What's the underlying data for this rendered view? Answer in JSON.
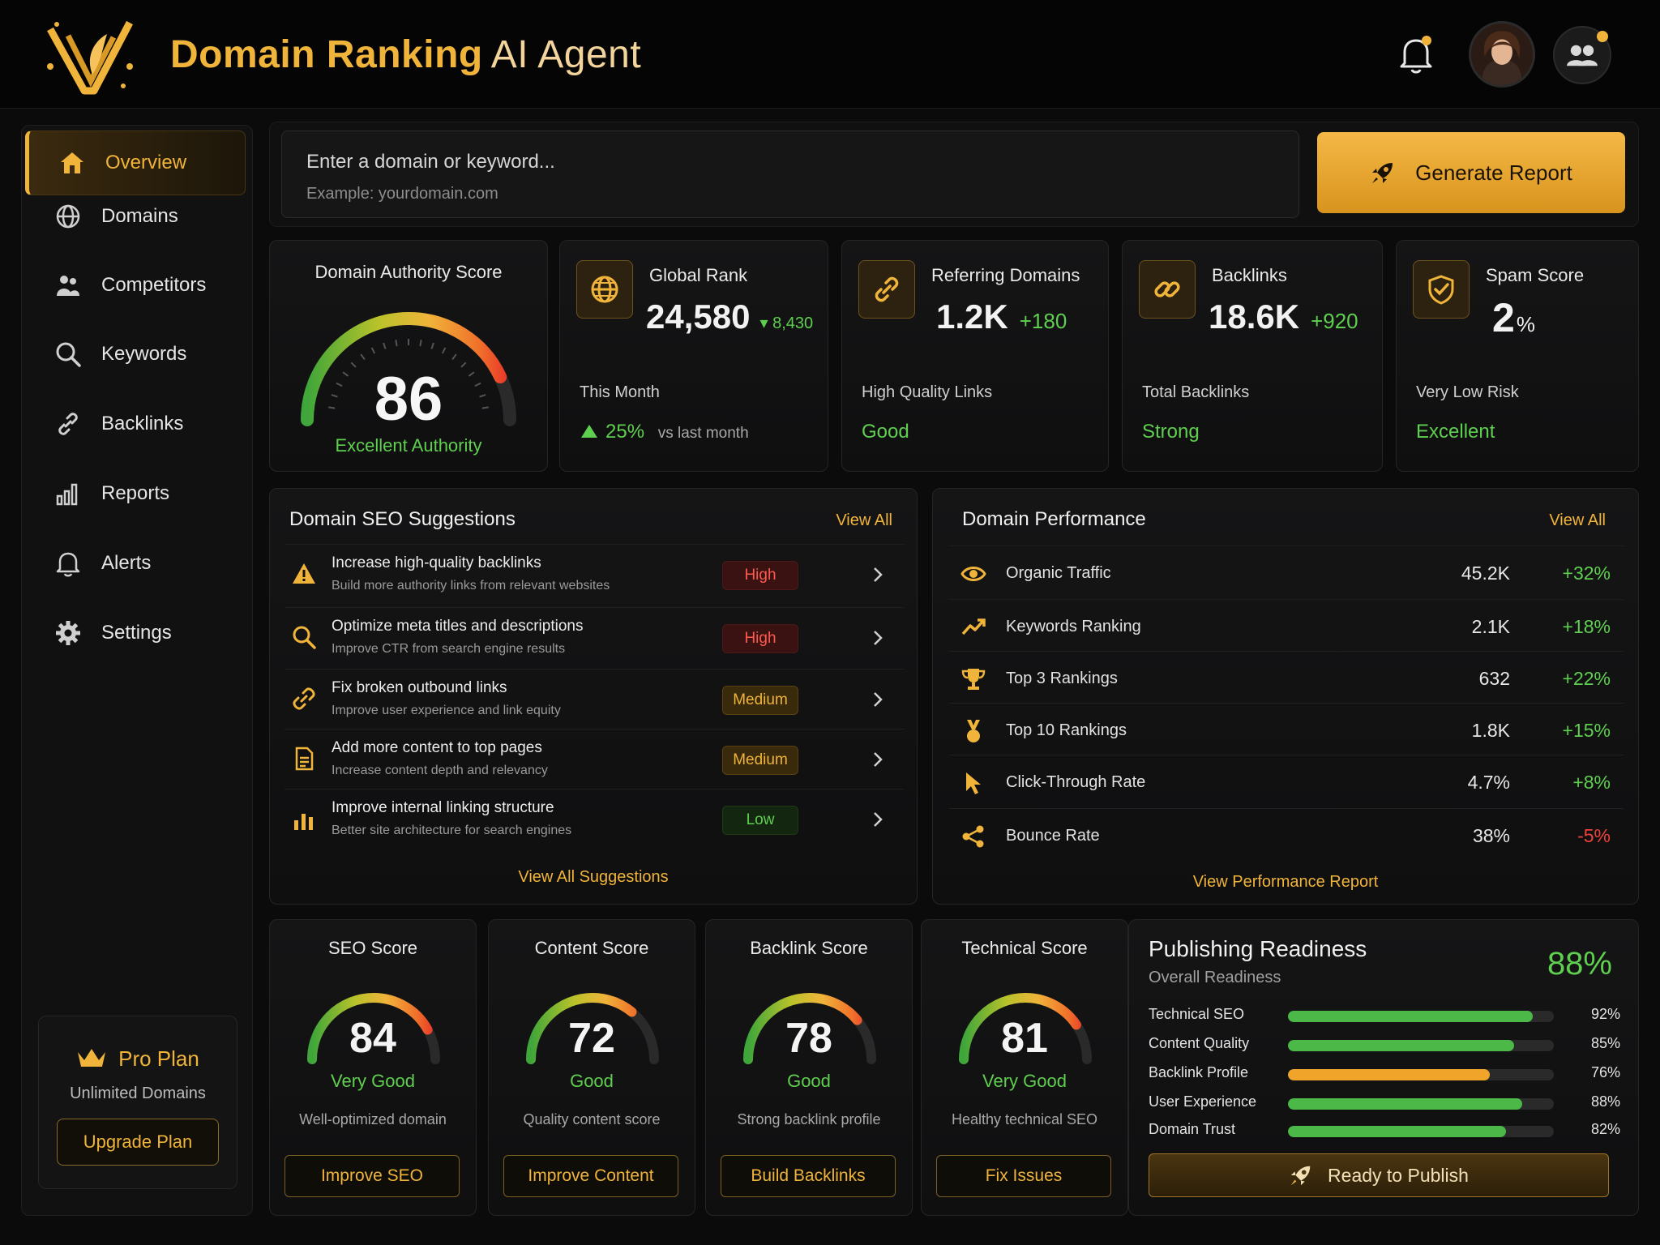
{
  "header": {
    "title": "Domain Ranking",
    "title_light": "AI Agent"
  },
  "sidebar": {
    "items": [
      {
        "label": "Overview",
        "icon": "home-icon"
      },
      {
        "label": "Domains",
        "icon": "globe-icon"
      },
      {
        "label": "Competitors",
        "icon": "users-icon"
      },
      {
        "label": "Keywords",
        "icon": "search-icon"
      },
      {
        "label": "Backlinks",
        "icon": "link-icon"
      },
      {
        "label": "Reports",
        "icon": "bar-chart-icon"
      },
      {
        "label": "Alerts",
        "icon": "bell-icon"
      },
      {
        "label": "Settings",
        "icon": "gear-icon"
      }
    ],
    "plan": {
      "title": "Pro Plan",
      "subtitle": "Unlimited Domains",
      "button": "Upgrade Plan"
    }
  },
  "search": {
    "placeholder": "Enter a domain or keyword...",
    "example": "Example: yourdomain.com",
    "button": "Generate Report"
  },
  "authority": {
    "title": "Domain Authority Score",
    "score": "86",
    "rating": "Excellent Authority",
    "fraction": 0.86
  },
  "stats": {
    "global_rank": {
      "name": "Global Rank",
      "value": "24,580",
      "delta": "▾ 8,430",
      "label": "This Month",
      "trend_pct": "25%",
      "trend_text": "vs last month"
    },
    "referring": {
      "name": "Referring Domains",
      "value": "1.2K",
      "delta": "+180",
      "label": "High Quality Links",
      "status": "Good"
    },
    "backlinks": {
      "name": "Backlinks",
      "value": "18.6K",
      "delta": "+920",
      "label": "Total Backlinks",
      "status": "Strong"
    },
    "spam": {
      "name": "Spam Score",
      "value": "2",
      "unit": "%",
      "label": "Very Low Risk",
      "status": "Excellent"
    }
  },
  "suggestions": {
    "title": "Domain SEO Suggestions",
    "view_all": "View All",
    "footer": "View All Suggestions",
    "items": [
      {
        "title": "Increase high-quality backlinks",
        "desc": "Build more authority links from relevant websites",
        "priority": "High"
      },
      {
        "title": "Optimize meta titles and descriptions",
        "desc": "Improve CTR from search engine results",
        "priority": "High"
      },
      {
        "title": "Fix broken outbound links",
        "desc": "Improve user experience and link equity",
        "priority": "Medium"
      },
      {
        "title": "Add more content to top pages",
        "desc": "Increase content depth and relevancy",
        "priority": "Medium"
      },
      {
        "title": "Improve internal linking structure",
        "desc": "Better site architecture for search engines",
        "priority": "Low"
      }
    ]
  },
  "performance": {
    "title": "Domain Performance",
    "view_all": "View All",
    "footer": "View Performance Report",
    "rows": [
      {
        "name": "Organic Traffic",
        "value": "45.2K",
        "change": "+32%",
        "icon": "eye-icon"
      },
      {
        "name": "Keywords Ranking",
        "value": "2.1K",
        "change": "+18%",
        "icon": "trend-up-icon"
      },
      {
        "name": "Top 3 Rankings",
        "value": "632",
        "change": "+22%",
        "icon": "trophy-icon"
      },
      {
        "name": "Top 10 Rankings",
        "value": "1.8K",
        "change": "+15%",
        "icon": "medal-icon"
      },
      {
        "name": "Click-Through Rate",
        "value": "4.7%",
        "change": "+8%",
        "icon": "cursor-icon"
      },
      {
        "name": "Bounce Rate",
        "value": "38%",
        "change": "-5%",
        "icon": "share-icon"
      }
    ]
  },
  "scores": [
    {
      "title": "SEO Score",
      "score": "84",
      "rating": "Very Good",
      "desc": "Well-optimized domain",
      "button": "Improve SEO",
      "fraction": 0.84
    },
    {
      "title": "Content Score",
      "score": "72",
      "rating": "Good",
      "desc": "Quality content score",
      "button": "Improve Content",
      "fraction": 0.72
    },
    {
      "title": "Backlink Score",
      "score": "78",
      "rating": "Good",
      "desc": "Strong backlink profile",
      "button": "Build Backlinks",
      "fraction": 0.78
    },
    {
      "title": "Technical Score",
      "score": "81",
      "rating": "Very Good",
      "desc": "Healthy technical SEO",
      "button": "Fix Issues",
      "fraction": 0.81
    }
  ],
  "publishing": {
    "title": "Publishing Readiness",
    "subtitle": "Overall Readiness",
    "percent": "88%",
    "button": "Ready to Publish",
    "bars": [
      {
        "label": "Technical SEO",
        "pct": "92%",
        "value": 0.92,
        "color": "#4cb847"
      },
      {
        "label": "Content Quality",
        "pct": "85%",
        "value": 0.85,
        "color": "#4cb847"
      },
      {
        "label": "Backlink Profile",
        "pct": "76%",
        "value": 0.76,
        "color": "#f0a52a"
      },
      {
        "label": "User Experience",
        "pct": "88%",
        "value": 0.88,
        "color": "#4cb847"
      },
      {
        "label": "Domain Trust",
        "pct": "82%",
        "value": 0.82,
        "color": "#4cb847"
      }
    ]
  },
  "colors": {
    "accent": "#f0b43a",
    "positive": "#5fcf4f",
    "negative": "#f0413a"
  }
}
